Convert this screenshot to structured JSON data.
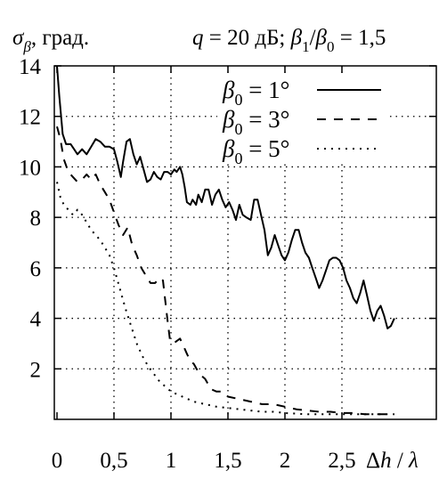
{
  "header": {
    "ylabel_main": "σ",
    "ylabel_sub": "β",
    "ylabel_unit": ", град.",
    "cond_var": "q",
    "cond_text": " = 20 дБ; ",
    "cond_b": "β",
    "cond_b1": "1",
    "cond_slash": "/",
    "cond_b0": "0",
    "cond_value": " = 1,5"
  },
  "xlabel": {
    "delta": "Δ",
    "h": "h",
    "slash": " / ",
    "lambda": "λ"
  },
  "chart_data": {
    "type": "line",
    "title": "σβ, град.    q = 20 дБ; β1/β0 = 1,5",
    "xlabel": "Δh / λ",
    "ylabel": "σβ, град.",
    "xlim": [
      0,
      3.25
    ],
    "ylim": [
      0,
      14
    ],
    "x_ticks": [
      0,
      0.5,
      1,
      1.5,
      2,
      2.5
    ],
    "x_tick_labels": [
      "0",
      "0,5",
      "1",
      "1,5",
      "2",
      "2,5"
    ],
    "y_ticks": [
      2,
      4,
      6,
      8,
      10,
      12,
      14
    ],
    "y_tick_labels": [
      "2",
      "4",
      "6",
      "8",
      "10",
      "12",
      "14"
    ],
    "grid": true,
    "legend_position": "top-right",
    "series": [
      {
        "name": "β0 = 1°",
        "legend_sym": "β",
        "legend_sub": "0",
        "legend_rest": " = 1°",
        "dash": "solid",
        "points": [
          [
            0,
            14
          ],
          [
            0.02,
            12.8
          ],
          [
            0.05,
            11.3
          ],
          [
            0.08,
            10.9
          ],
          [
            0.12,
            10.9
          ],
          [
            0.15,
            10.7
          ],
          [
            0.18,
            10.5
          ],
          [
            0.22,
            10.7
          ],
          [
            0.26,
            10.5
          ],
          [
            0.3,
            10.8
          ],
          [
            0.34,
            11.1
          ],
          [
            0.38,
            11
          ],
          [
            0.42,
            10.8
          ],
          [
            0.46,
            10.8
          ],
          [
            0.5,
            10.7
          ],
          [
            0.53,
            10.2
          ],
          [
            0.56,
            9.6
          ],
          [
            0.58,
            10.2
          ],
          [
            0.61,
            11
          ],
          [
            0.64,
            11.1
          ],
          [
            0.67,
            10.5
          ],
          [
            0.7,
            10.1
          ],
          [
            0.73,
            10.4
          ],
          [
            0.76,
            9.9
          ],
          [
            0.79,
            9.4
          ],
          [
            0.82,
            9.5
          ],
          [
            0.85,
            9.8
          ],
          [
            0.88,
            9.6
          ],
          [
            0.91,
            9.5
          ],
          [
            0.94,
            9.8
          ],
          [
            0.97,
            9.8
          ],
          [
            1.0,
            9.7
          ],
          [
            1.03,
            9.9
          ],
          [
            1.05,
            9.8
          ],
          [
            1.08,
            10
          ],
          [
            1.1,
            9.7
          ],
          [
            1.12,
            9.2
          ],
          [
            1.14,
            8.6
          ],
          [
            1.17,
            8.5
          ],
          [
            1.19,
            8.7
          ],
          [
            1.22,
            8.5
          ],
          [
            1.24,
            8.9
          ],
          [
            1.27,
            8.6
          ],
          [
            1.3,
            9.1
          ],
          [
            1.33,
            9.1
          ],
          [
            1.36,
            8.5
          ],
          [
            1.39,
            8.9
          ],
          [
            1.42,
            9.1
          ],
          [
            1.45,
            8.7
          ],
          [
            1.48,
            8.4
          ],
          [
            1.51,
            8.6
          ],
          [
            1.54,
            8.3
          ],
          [
            1.57,
            7.9
          ],
          [
            1.6,
            8.5
          ],
          [
            1.63,
            8.1
          ],
          [
            1.66,
            8
          ],
          [
            1.7,
            7.9
          ],
          [
            1.73,
            8.7
          ],
          [
            1.76,
            8.7
          ],
          [
            1.79,
            8.1
          ],
          [
            1.82,
            7.5
          ],
          [
            1.85,
            6.5
          ],
          [
            1.88,
            6.8
          ],
          [
            1.91,
            7.3
          ],
          [
            1.94,
            6.9
          ],
          [
            1.97,
            6.5
          ],
          [
            2.0,
            6.3
          ],
          [
            2.03,
            6.6
          ],
          [
            2.06,
            7.1
          ],
          [
            2.09,
            7.5
          ],
          [
            2.12,
            7.5
          ],
          [
            2.15,
            7
          ],
          [
            2.18,
            6.6
          ],
          [
            2.21,
            6.4
          ],
          [
            2.24,
            6
          ],
          [
            2.27,
            5.6
          ],
          [
            2.3,
            5.2
          ],
          [
            2.33,
            5.5
          ],
          [
            2.36,
            5.9
          ],
          [
            2.39,
            6.3
          ],
          [
            2.42,
            6.4
          ],
          [
            2.45,
            6.4
          ],
          [
            2.48,
            6.3
          ],
          [
            2.51,
            6
          ],
          [
            2.54,
            5.5
          ],
          [
            2.57,
            5.2
          ],
          [
            2.6,
            4.8
          ],
          [
            2.63,
            4.6
          ],
          [
            2.66,
            5
          ],
          [
            2.69,
            5.5
          ],
          [
            2.72,
            4.9
          ],
          [
            2.75,
            4.3
          ],
          [
            2.78,
            3.9
          ],
          [
            2.81,
            4.3
          ],
          [
            2.84,
            4.5
          ],
          [
            2.87,
            4.1
          ],
          [
            2.9,
            3.6
          ],
          [
            2.93,
            3.7
          ],
          [
            2.96,
            4
          ]
        ]
      },
      {
        "name": "β0 = 3°",
        "legend_sym": "β",
        "legend_sub": "0",
        "legend_rest": " = 3°",
        "dash": "dashed",
        "points": [
          [
            0,
            11.6
          ],
          [
            0.03,
            11.1
          ],
          [
            0.06,
            10.3
          ],
          [
            0.1,
            9.8
          ],
          [
            0.14,
            9.6
          ],
          [
            0.18,
            9.4
          ],
          [
            0.22,
            9.5
          ],
          [
            0.26,
            9.7
          ],
          [
            0.3,
            9.5
          ],
          [
            0.34,
            9.7
          ],
          [
            0.38,
            9.3
          ],
          [
            0.42,
            9
          ],
          [
            0.46,
            8.7
          ],
          [
            0.5,
            8.2
          ],
          [
            0.54,
            7.7
          ],
          [
            0.58,
            7.3
          ],
          [
            0.62,
            7.6
          ],
          [
            0.66,
            6.9
          ],
          [
            0.7,
            6.5
          ],
          [
            0.74,
            6
          ],
          [
            0.78,
            5.7
          ],
          [
            0.82,
            5.4
          ],
          [
            0.86,
            5.4
          ],
          [
            0.9,
            5.6
          ],
          [
            0.93,
            5.5
          ],
          [
            0.95,
            4.7
          ],
          [
            0.97,
            3.9
          ],
          [
            0.99,
            3.2
          ],
          [
            1.02,
            3
          ],
          [
            1.05,
            3.1
          ],
          [
            1.08,
            3.2
          ],
          [
            1.11,
            2.9
          ],
          [
            1.14,
            2.6
          ],
          [
            1.17,
            2.3
          ],
          [
            1.2,
            2.2
          ],
          [
            1.25,
            1.8
          ],
          [
            1.3,
            1.6
          ],
          [
            1.35,
            1.2
          ],
          [
            1.4,
            1.1
          ],
          [
            1.45,
            1.1
          ],
          [
            1.5,
            0.9
          ],
          [
            1.6,
            0.8
          ],
          [
            1.7,
            0.7
          ],
          [
            1.8,
            0.6
          ],
          [
            1.9,
            0.6
          ],
          [
            2.0,
            0.5
          ],
          [
            2.1,
            0.4
          ],
          [
            2.2,
            0.35
          ],
          [
            2.3,
            0.3
          ],
          [
            2.4,
            0.3
          ],
          [
            2.5,
            0.25
          ],
          [
            2.6,
            0.25
          ],
          [
            2.7,
            0.2
          ],
          [
            2.8,
            0.2
          ],
          [
            2.9,
            0.2
          ],
          [
            2.96,
            0.2
          ]
        ]
      },
      {
        "name": "β0 = 5°",
        "legend_sym": "β",
        "legend_sub": "0",
        "legend_rest": " = 5°",
        "dash": "dotted",
        "points": [
          [
            0,
            9.4
          ],
          [
            0.03,
            8.8
          ],
          [
            0.06,
            8.5
          ],
          [
            0.1,
            8.3
          ],
          [
            0.14,
            8.1
          ],
          [
            0.18,
            8.3
          ],
          [
            0.22,
            8.1
          ],
          [
            0.26,
            7.8
          ],
          [
            0.3,
            7.5
          ],
          [
            0.34,
            7.3
          ],
          [
            0.38,
            7.1
          ],
          [
            0.42,
            6.8
          ],
          [
            0.46,
            6.5
          ],
          [
            0.5,
            6
          ],
          [
            0.55,
            5.2
          ],
          [
            0.6,
            4.4
          ],
          [
            0.65,
            3.7
          ],
          [
            0.7,
            3
          ],
          [
            0.75,
            2.5
          ],
          [
            0.8,
            2.1
          ],
          [
            0.85,
            1.8
          ],
          [
            0.9,
            1.5
          ],
          [
            0.95,
            1.3
          ],
          [
            1.0,
            1.1
          ],
          [
            1.1,
            0.9
          ],
          [
            1.2,
            0.7
          ],
          [
            1.3,
            0.6
          ],
          [
            1.4,
            0.5
          ],
          [
            1.5,
            0.45
          ],
          [
            1.6,
            0.4
          ],
          [
            1.7,
            0.35
          ],
          [
            1.8,
            0.3
          ],
          [
            1.9,
            0.3
          ],
          [
            2.0,
            0.25
          ],
          [
            2.2,
            0.2
          ],
          [
            2.4,
            0.2
          ],
          [
            2.6,
            0.2
          ],
          [
            2.8,
            0.2
          ],
          [
            2.96,
            0.2
          ]
        ]
      }
    ]
  }
}
